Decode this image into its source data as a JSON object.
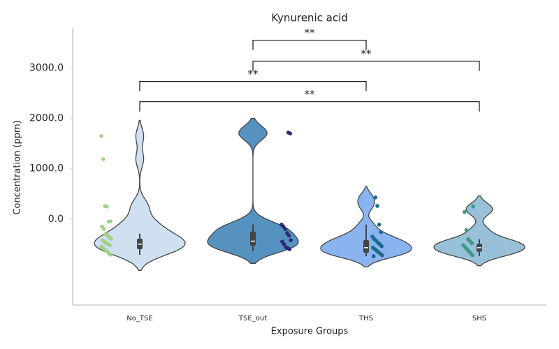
{
  "chart_data": {
    "type": "violin",
    "title": "Kynurenic acid",
    "xlabel": "Exposure Groups",
    "ylabel": "Concentration (ppm)",
    "categories": [
      "No_TSE",
      "TSE_out",
      "THS",
      "SHS"
    ],
    "ylim": [
      -1710,
      3800
    ],
    "yticks": [
      {
        "value": 0,
        "label": "0.0"
      },
      {
        "value": 1000,
        "label": "1000.0"
      },
      {
        "value": 2000,
        "label": "2000.0"
      },
      {
        "value": 3000,
        "label": "3000.0"
      }
    ],
    "series": [
      {
        "color": "#cfe0f1",
        "point_color": "#a1d08a",
        "values": [
          1650,
          1190,
          260,
          250,
          -50,
          -50,
          -150,
          -200,
          -300,
          -330,
          -360,
          -390,
          -420,
          -450,
          -480,
          -500,
          -520,
          -550,
          -580,
          -610,
          -640,
          -680,
          -710
        ],
        "quartiles": [
          -600,
          -500,
          -390
        ],
        "whiskers": [
          -710,
          -290
        ]
      },
      {
        "color": "#5592c0",
        "point_color": "#2b2a73",
        "values": [
          1720,
          1700,
          -110,
          -150,
          -200,
          -280,
          -330,
          -420,
          -450,
          -500,
          -560,
          -580,
          -600
        ],
        "quartiles": [
          -530,
          -440,
          -250
        ],
        "whiskers": [
          -640,
          -110
        ]
      },
      {
        "color": "#8ab4f0",
        "point_color": "#1a6b8e",
        "values": [
          430,
          260,
          -110,
          -260,
          -350,
          -400,
          -430,
          -470,
          -500,
          -540,
          -570,
          -600,
          -630,
          -660,
          -690,
          -720,
          -740
        ],
        "quartiles": [
          -670,
          -570,
          -420
        ],
        "whiskers": [
          -740,
          -110
        ]
      },
      {
        "color": "#98c0d8",
        "point_color": "#3b9a83",
        "values": [
          250,
          140,
          -220,
          -400,
          -440,
          -480,
          -520,
          -560,
          -600,
          -640,
          -680,
          -720
        ],
        "quartiles": [
          -650,
          -570,
          -490
        ],
        "whiskers": [
          -740,
          -400
        ]
      }
    ],
    "annotations": [
      {
        "groups": [
          "TSE_out",
          "THS"
        ],
        "y": 3556,
        "text": "**"
      },
      {
        "groups": [
          "TSE_out",
          "SHS"
        ],
        "y": 3139,
        "text": "**"
      },
      {
        "groups": [
          "No_TSE",
          "THS"
        ],
        "y": 2736,
        "text": "**"
      },
      {
        "groups": [
          "No_TSE",
          "SHS"
        ],
        "y": 2333,
        "text": "**"
      }
    ]
  }
}
